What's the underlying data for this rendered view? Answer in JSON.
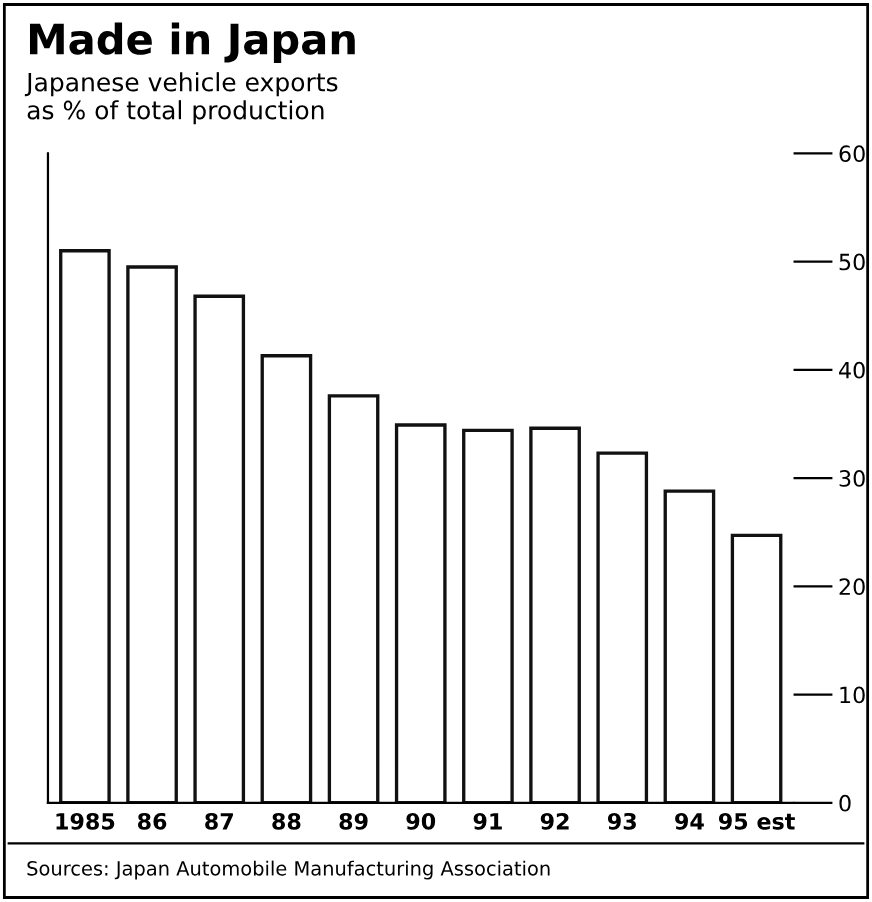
{
  "chart_data": {
    "type": "bar",
    "title": "Made in Japan",
    "subtitle": "Japanese vehicle exports\nas % of total production",
    "categories": [
      "1985",
      "86",
      "87",
      "88",
      "89",
      "90",
      "91",
      "92",
      "93",
      "94",
      "95 est"
    ],
    "values": [
      51,
      49.5,
      46.8,
      41.3,
      37.6,
      34.9,
      34.4,
      34.6,
      32.3,
      28.8,
      24.7
    ],
    "color": "#ffffff",
    "ylim": [
      0,
      60
    ],
    "yticks": [
      0,
      10,
      20,
      30,
      40,
      50,
      60
    ],
    "grid": false,
    "annotations": [
      "Sources: Japan Automobile Manufacturing Association"
    ]
  }
}
